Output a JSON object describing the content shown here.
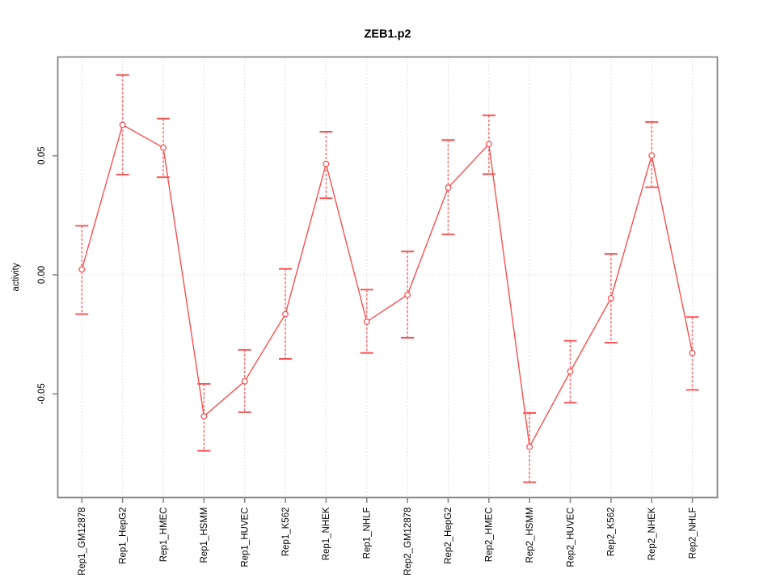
{
  "figure": {
    "title": "ZEB1.p2",
    "ylabel": "activity"
  },
  "chart_data": {
    "type": "line",
    "title": "ZEB1.p2",
    "xlabel": "",
    "ylabel": "activity",
    "legend": "none",
    "marker": "open-circle",
    "error_bars": true,
    "grid": {
      "vertical": "dotted at every category",
      "horizontal": "dotted at y=0 only"
    },
    "ylim": [
      -0.094,
      0.091
    ],
    "yticks": [
      -0.05,
      0.0,
      0.05
    ],
    "ytick_labels": [
      "-0.05",
      "0.00",
      "0.05"
    ],
    "categories": [
      "Rep1_GM12878",
      "Rep1_HepG2",
      "Rep1_HMEC",
      "Rep1_HSMM",
      "Rep1_HUVEC",
      "Rep1_K562",
      "Rep1_NHEK",
      "Rep1_NHLF",
      "Rep2_GM12878",
      "Rep2_HepG2",
      "Rep2_HMEC",
      "Rep2_HSMM",
      "Rep2_HUVEC",
      "Rep2_K562",
      "Rep2_NHEK",
      "Rep2_NHLF"
    ],
    "series": [
      {
        "name": "activity",
        "values": [
          0.0023,
          0.063,
          0.0534,
          -0.0594,
          -0.0447,
          -0.0165,
          0.0466,
          -0.0197,
          -0.0084,
          0.0366,
          0.0549,
          -0.0722,
          -0.0406,
          -0.0098,
          0.0501,
          -0.0328
        ],
        "error_low": [
          -0.0165,
          0.0421,
          0.041,
          -0.0739,
          -0.0577,
          -0.0353,
          0.0322,
          -0.0328,
          -0.0264,
          0.017,
          0.0423,
          -0.0871,
          -0.0537,
          -0.0285,
          0.0368,
          -0.0483
        ],
        "error_high": [
          0.0206,
          0.0839,
          0.0656,
          -0.0458,
          -0.0315,
          0.0025,
          0.0601,
          -0.0062,
          0.0098,
          0.0566,
          0.067,
          -0.058,
          -0.0277,
          0.0088,
          0.0642,
          -0.0177
        ]
      }
    ],
    "colors": {
      "line": "#f65050",
      "error_stem": "#f87b7b",
      "grid": "#d8d8d8",
      "box": "#878787",
      "text": "#000000",
      "background": "#ffffff"
    }
  }
}
